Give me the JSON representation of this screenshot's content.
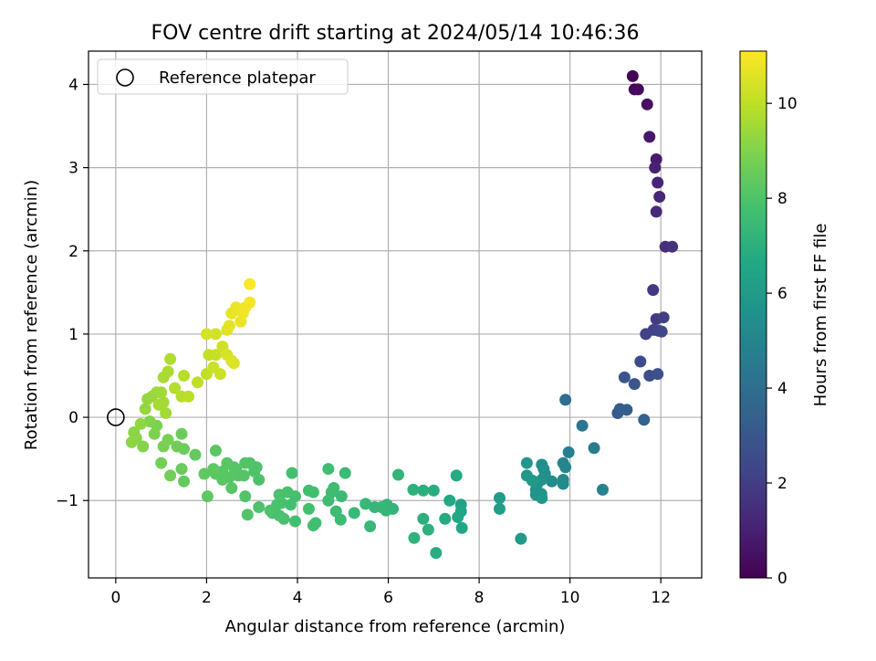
{
  "chart_data": {
    "type": "scatter",
    "title": "FOV centre drift starting at 2024/05/14 10:46:36",
    "xlabel": "Angular distance from reference (arcmin)",
    "ylabel": "Rotation from reference (arcmin)",
    "xlim": [
      -0.6,
      12.9
    ],
    "ylim": [
      -1.93,
      4.4
    ],
    "xticks": [
      0,
      2,
      4,
      6,
      8,
      10,
      12
    ],
    "yticks": [
      -1,
      0,
      1,
      2,
      3,
      4
    ],
    "xtick_labels": [
      "0",
      "2",
      "4",
      "6",
      "8",
      "10",
      "12"
    ],
    "ytick_labels": [
      "−1",
      "0",
      "1",
      "2",
      "3",
      "4"
    ],
    "grid": true,
    "legend": {
      "position": "top-left",
      "label": "Reference platepar"
    },
    "reference_point": {
      "x": 0,
      "y": 0
    },
    "colorbar": {
      "label": "Hours from first FF file",
      "range": [
        0,
        11.1
      ],
      "ticks": [
        0,
        2,
        4,
        6,
        8,
        10
      ],
      "tick_labels": [
        "0",
        "2",
        "4",
        "6",
        "8",
        "10"
      ],
      "colormap": "viridis"
    },
    "points": [
      {
        "x": 11.38,
        "y": 4.1,
        "h": 0.05
      },
      {
        "x": 11.42,
        "y": 3.94,
        "h": 0.2
      },
      {
        "x": 11.5,
        "y": 3.94,
        "h": 0.3
      },
      {
        "x": 11.7,
        "y": 3.76,
        "h": 0.5
      },
      {
        "x": 11.75,
        "y": 3.37,
        "h": 0.7
      },
      {
        "x": 11.9,
        "y": 3.1,
        "h": 0.9
      },
      {
        "x": 11.87,
        "y": 3.0,
        "h": 1.0
      },
      {
        "x": 11.93,
        "y": 2.82,
        "h": 1.1
      },
      {
        "x": 11.97,
        "y": 2.65,
        "h": 1.2
      },
      {
        "x": 11.9,
        "y": 2.47,
        "h": 1.35
      },
      {
        "x": 12.1,
        "y": 2.05,
        "h": 1.5
      },
      {
        "x": 12.25,
        "y": 2.05,
        "h": 1.6
      },
      {
        "x": 11.83,
        "y": 1.53,
        "h": 1.8
      },
      {
        "x": 11.9,
        "y": 1.18,
        "h": 1.95
      },
      {
        "x": 12.06,
        "y": 1.2,
        "h": 2.0
      },
      {
        "x": 11.67,
        "y": 1.0,
        "h": 2.1
      },
      {
        "x": 11.84,
        "y": 1.05,
        "h": 2.2
      },
      {
        "x": 11.95,
        "y": 1.04,
        "h": 2.25
      },
      {
        "x": 12.02,
        "y": 1.03,
        "h": 2.3
      },
      {
        "x": 11.55,
        "y": 0.67,
        "h": 2.5
      },
      {
        "x": 11.75,
        "y": 0.5,
        "h": 2.6
      },
      {
        "x": 11.93,
        "y": 0.52,
        "h": 2.7
      },
      {
        "x": 11.2,
        "y": 0.48,
        "h": 2.9
      },
      {
        "x": 11.42,
        "y": 0.4,
        "h": 3.0
      },
      {
        "x": 11.05,
        "y": 0.05,
        "h": 3.1
      },
      {
        "x": 11.1,
        "y": 0.1,
        "h": 3.2
      },
      {
        "x": 11.25,
        "y": 0.09,
        "h": 3.3
      },
      {
        "x": 11.63,
        "y": -0.03,
        "h": 3.4
      },
      {
        "x": 9.9,
        "y": 0.21,
        "h": 4.0
      },
      {
        "x": 10.27,
        "y": -0.1,
        "h": 4.3
      },
      {
        "x": 10.53,
        "y": -0.37,
        "h": 4.6
      },
      {
        "x": 10.72,
        "y": -0.87,
        "h": 4.9
      },
      {
        "x": 9.97,
        "y": -0.42,
        "h": 4.8
      },
      {
        "x": 9.85,
        "y": -0.55,
        "h": 5.0
      },
      {
        "x": 9.9,
        "y": -0.6,
        "h": 5.1
      },
      {
        "x": 9.85,
        "y": -0.75,
        "h": 5.2
      },
      {
        "x": 9.85,
        "y": -0.8,
        "h": 5.3
      },
      {
        "x": 9.6,
        "y": -0.77,
        "h": 5.35
      },
      {
        "x": 9.38,
        "y": -0.57,
        "h": 5.4
      },
      {
        "x": 9.42,
        "y": -0.62,
        "h": 5.45
      },
      {
        "x": 9.45,
        "y": -0.68,
        "h": 5.5
      },
      {
        "x": 9.38,
        "y": -0.75,
        "h": 5.55
      },
      {
        "x": 9.28,
        "y": -0.8,
        "h": 5.6
      },
      {
        "x": 9.25,
        "y": -0.87,
        "h": 5.65
      },
      {
        "x": 9.37,
        "y": -0.92,
        "h": 5.7
      },
      {
        "x": 9.25,
        "y": -0.93,
        "h": 5.75
      },
      {
        "x": 9.38,
        "y": -0.97,
        "h": 5.8
      },
      {
        "x": 9.05,
        "y": -0.55,
        "h": 5.85
      },
      {
        "x": 9.05,
        "y": -0.7,
        "h": 5.9
      },
      {
        "x": 9.17,
        "y": -0.76,
        "h": 5.95
      },
      {
        "x": 8.92,
        "y": -1.46,
        "h": 6.0
      },
      {
        "x": 8.45,
        "y": -0.97,
        "h": 6.1
      },
      {
        "x": 8.45,
        "y": -1.1,
        "h": 6.2
      },
      {
        "x": 7.6,
        "y": -1.05,
        "h": 6.4
      },
      {
        "x": 7.6,
        "y": -1.13,
        "h": 6.5
      },
      {
        "x": 7.62,
        "y": -1.33,
        "h": 6.55
      },
      {
        "x": 7.53,
        "y": -1.2,
        "h": 6.6
      },
      {
        "x": 7.35,
        "y": -1.0,
        "h": 6.7
      },
      {
        "x": 7.5,
        "y": -0.7,
        "h": 6.75
      },
      {
        "x": 7.25,
        "y": -1.22,
        "h": 6.8
      },
      {
        "x": 7.05,
        "y": -1.63,
        "h": 6.85
      },
      {
        "x": 7.0,
        "y": -0.88,
        "h": 6.9
      },
      {
        "x": 6.77,
        "y": -0.88,
        "h": 6.95
      },
      {
        "x": 6.77,
        "y": -1.22,
        "h": 7.0
      },
      {
        "x": 6.88,
        "y": -1.35,
        "h": 7.05
      },
      {
        "x": 6.55,
        "y": -0.87,
        "h": 7.1
      },
      {
        "x": 6.57,
        "y": -1.45,
        "h": 7.15
      },
      {
        "x": 6.22,
        "y": -0.69,
        "h": 7.2
      },
      {
        "x": 6.1,
        "y": -1.1,
        "h": 7.25
      },
      {
        "x": 5.97,
        "y": -1.05,
        "h": 7.3
      },
      {
        "x": 5.95,
        "y": -1.12,
        "h": 7.3
      },
      {
        "x": 5.85,
        "y": -1.08,
        "h": 7.35
      },
      {
        "x": 5.7,
        "y": -1.08,
        "h": 7.35
      },
      {
        "x": 5.6,
        "y": -1.31,
        "h": 7.4
      },
      {
        "x": 5.5,
        "y": -1.04,
        "h": 7.4
      },
      {
        "x": 5.25,
        "y": -1.15,
        "h": 7.45
      },
      {
        "x": 5.05,
        "y": -0.67,
        "h": 7.5
      },
      {
        "x": 4.97,
        "y": -0.95,
        "h": 7.5
      },
      {
        "x": 4.95,
        "y": -1.23,
        "h": 7.55
      },
      {
        "x": 4.85,
        "y": -1.13,
        "h": 7.55
      },
      {
        "x": 4.75,
        "y": -0.9,
        "h": 7.6
      },
      {
        "x": 4.8,
        "y": -0.85,
        "h": 7.6
      },
      {
        "x": 4.68,
        "y": -1.0,
        "h": 7.6
      },
      {
        "x": 4.68,
        "y": -0.62,
        "h": 7.65
      },
      {
        "x": 4.4,
        "y": -1.27,
        "h": 7.65
      },
      {
        "x": 4.35,
        "y": -1.3,
        "h": 7.7
      },
      {
        "x": 4.35,
        "y": -0.9,
        "h": 7.7
      },
      {
        "x": 4.25,
        "y": -0.88,
        "h": 7.7
      },
      {
        "x": 4.25,
        "y": -1.1,
        "h": 7.75
      },
      {
        "x": 3.95,
        "y": -1.25,
        "h": 7.75
      },
      {
        "x": 3.95,
        "y": -0.95,
        "h": 7.8
      },
      {
        "x": 3.88,
        "y": -0.67,
        "h": 7.8
      },
      {
        "x": 3.85,
        "y": -1.05,
        "h": 7.8
      },
      {
        "x": 3.78,
        "y": -0.9,
        "h": 7.85
      },
      {
        "x": 3.7,
        "y": -1.22,
        "h": 7.85
      },
      {
        "x": 3.65,
        "y": -1.03,
        "h": 7.85
      },
      {
        "x": 3.6,
        "y": -1.18,
        "h": 7.9
      },
      {
        "x": 3.6,
        "y": -0.93,
        "h": 7.9
      },
      {
        "x": 3.55,
        "y": -1.05,
        "h": 7.9
      },
      {
        "x": 3.45,
        "y": -1.15,
        "h": 7.9
      },
      {
        "x": 3.4,
        "y": -1.12,
        "h": 7.95
      },
      {
        "x": 3.15,
        "y": -0.75,
        "h": 7.95
      },
      {
        "x": 3.15,
        "y": -1.08,
        "h": 7.95
      },
      {
        "x": 3.1,
        "y": -0.6,
        "h": 8.0
      },
      {
        "x": 3.05,
        "y": -0.65,
        "h": 8.0
      },
      {
        "x": 2.95,
        "y": -0.55,
        "h": 8.0
      },
      {
        "x": 2.85,
        "y": -0.55,
        "h": 8.05
      },
      {
        "x": 2.9,
        "y": -1.17,
        "h": 8.05
      },
      {
        "x": 2.85,
        "y": -0.95,
        "h": 8.05
      },
      {
        "x": 2.82,
        "y": -0.7,
        "h": 8.1
      },
      {
        "x": 2.7,
        "y": -0.7,
        "h": 8.1
      },
      {
        "x": 2.65,
        "y": -0.62,
        "h": 8.1
      },
      {
        "x": 2.6,
        "y": -0.6,
        "h": 8.15
      },
      {
        "x": 2.55,
        "y": -0.85,
        "h": 8.15
      },
      {
        "x": 2.5,
        "y": -0.72,
        "h": 8.15
      },
      {
        "x": 2.45,
        "y": -0.55,
        "h": 8.2
      },
      {
        "x": 2.35,
        "y": -0.65,
        "h": 8.2
      },
      {
        "x": 2.35,
        "y": -0.75,
        "h": 8.2
      },
      {
        "x": 2.2,
        "y": -0.4,
        "h": 8.25
      },
      {
        "x": 2.2,
        "y": -0.68,
        "h": 8.25
      },
      {
        "x": 2.15,
        "y": -0.62,
        "h": 8.3
      },
      {
        "x": 2.02,
        "y": -0.95,
        "h": 8.3
      },
      {
        "x": 1.95,
        "y": -0.68,
        "h": 8.35
      },
      {
        "x": 1.75,
        "y": -0.45,
        "h": 8.4
      },
      {
        "x": 1.5,
        "y": -0.77,
        "h": 8.45
      },
      {
        "x": 1.45,
        "y": -0.62,
        "h": 8.5
      },
      {
        "x": 1.5,
        "y": -0.38,
        "h": 8.55
      },
      {
        "x": 1.45,
        "y": -0.2,
        "h": 8.6
      },
      {
        "x": 1.35,
        "y": -0.35,
        "h": 8.65
      },
      {
        "x": 1.2,
        "y": -0.7,
        "h": 8.7
      },
      {
        "x": 1.0,
        "y": -0.55,
        "h": 8.75
      },
      {
        "x": 1.05,
        "y": -0.35,
        "h": 8.8
      },
      {
        "x": 1.15,
        "y": -0.27,
        "h": 8.85
      },
      {
        "x": 0.9,
        "y": -0.1,
        "h": 8.9
      },
      {
        "x": 0.85,
        "y": -0.2,
        "h": 8.95
      },
      {
        "x": 0.75,
        "y": -0.05,
        "h": 9.0
      },
      {
        "x": 0.6,
        "y": -0.35,
        "h": 9.05
      },
      {
        "x": 0.45,
        "y": -0.25,
        "h": 9.1
      },
      {
        "x": 0.4,
        "y": -0.18,
        "h": 9.15
      },
      {
        "x": 0.35,
        "y": -0.3,
        "h": 9.2
      },
      {
        "x": 0.55,
        "y": -0.08,
        "h": 9.25
      },
      {
        "x": 0.65,
        "y": 0.1,
        "h": 9.3
      },
      {
        "x": 0.7,
        "y": 0.22,
        "h": 9.35
      },
      {
        "x": 0.8,
        "y": 0.25,
        "h": 9.4
      },
      {
        "x": 0.9,
        "y": 0.3,
        "h": 9.45
      },
      {
        "x": 1.0,
        "y": 0.3,
        "h": 9.5
      },
      {
        "x": 1.05,
        "y": 0.18,
        "h": 9.55
      },
      {
        "x": 1.1,
        "y": 0.05,
        "h": 9.6
      },
      {
        "x": 0.95,
        "y": 0.15,
        "h": 9.6
      },
      {
        "x": 1.05,
        "y": 0.48,
        "h": 9.65
      },
      {
        "x": 1.15,
        "y": 0.55,
        "h": 9.7
      },
      {
        "x": 1.2,
        "y": 0.7,
        "h": 9.75
      },
      {
        "x": 1.3,
        "y": 0.35,
        "h": 9.8
      },
      {
        "x": 1.45,
        "y": 0.25,
        "h": 9.85
      },
      {
        "x": 1.5,
        "y": 0.5,
        "h": 9.9
      },
      {
        "x": 1.6,
        "y": 0.25,
        "h": 9.95
      },
      {
        "x": 1.8,
        "y": 0.42,
        "h": 10.0
      },
      {
        "x": 2.0,
        "y": 0.52,
        "h": 10.05
      },
      {
        "x": 2.05,
        "y": 0.75,
        "h": 10.1
      },
      {
        "x": 2.2,
        "y": 0.75,
        "h": 10.15
      },
      {
        "x": 2.15,
        "y": 0.6,
        "h": 10.2
      },
      {
        "x": 2.3,
        "y": 0.52,
        "h": 10.25
      },
      {
        "x": 2.35,
        "y": 0.85,
        "h": 10.3
      },
      {
        "x": 2.2,
        "y": 1.0,
        "h": 10.35
      },
      {
        "x": 2.0,
        "y": 1.0,
        "h": 10.4
      },
      {
        "x": 2.45,
        "y": 0.75,
        "h": 10.45
      },
      {
        "x": 2.55,
        "y": 0.68,
        "h": 10.5
      },
      {
        "x": 2.6,
        "y": 0.65,
        "h": 10.55
      },
      {
        "x": 2.45,
        "y": 1.05,
        "h": 10.6
      },
      {
        "x": 2.5,
        "y": 1.1,
        "h": 10.65
      },
      {
        "x": 2.55,
        "y": 1.25,
        "h": 10.7
      },
      {
        "x": 2.65,
        "y": 1.32,
        "h": 10.75
      },
      {
        "x": 2.75,
        "y": 1.15,
        "h": 10.8
      },
      {
        "x": 2.8,
        "y": 1.25,
        "h": 10.85
      },
      {
        "x": 2.85,
        "y": 1.32,
        "h": 10.9
      },
      {
        "x": 2.95,
        "y": 1.38,
        "h": 10.95
      },
      {
        "x": 2.95,
        "y": 1.6,
        "h": 11.05
      }
    ]
  }
}
